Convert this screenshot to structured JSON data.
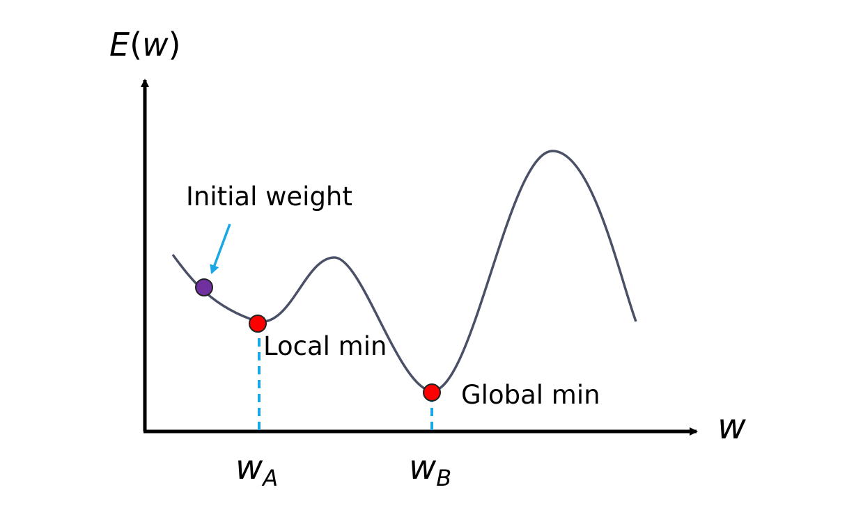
{
  "axes": {
    "y_label": {
      "prefix": "E",
      "open_paren": "(",
      "var": "w",
      "close_paren": ")"
    },
    "x_label": "w"
  },
  "ticks": {
    "w_a": {
      "base": "w",
      "sub": "A"
    },
    "w_b": {
      "base": "w",
      "sub": "B"
    }
  },
  "annotations": {
    "initial_weight": "Initial weight",
    "local_min": "Local min",
    "global_min": "Global min"
  },
  "colors": {
    "axis": "#000000",
    "curve": "#4a5066",
    "arrow": "#1aa7e6",
    "dashed": "#1aa7e6",
    "min_point": "#ff0000",
    "initial_point": "#7030a0",
    "point_outline": "#222222"
  }
}
